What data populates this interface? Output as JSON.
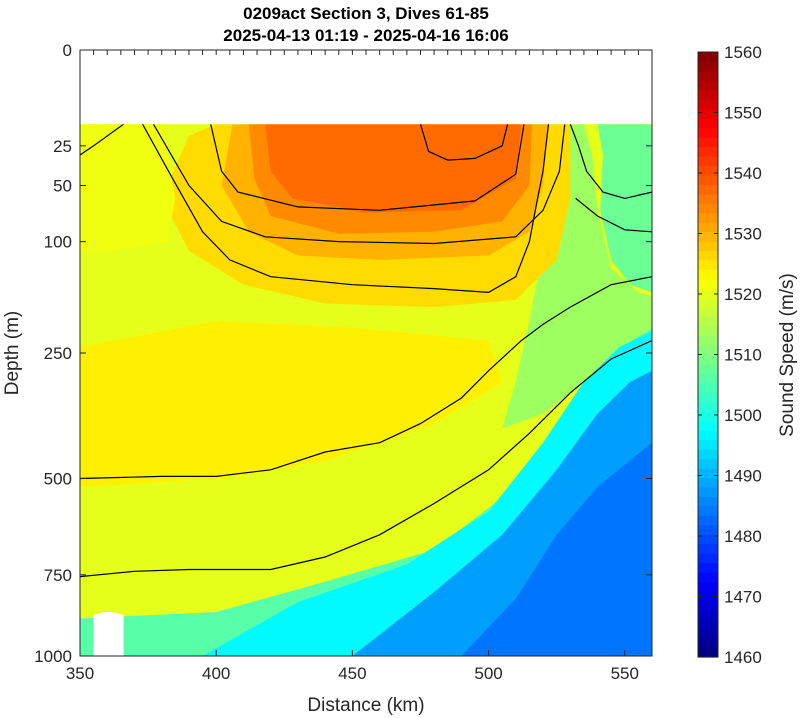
{
  "chart_data": {
    "type": "heatmap",
    "title": "0209act Section 3, Dives 61-85",
    "subtitle": "2025-04-13 01:19 - 2025-04-16 16:06",
    "xlabel": "Distance (km)",
    "ylabel": "Depth (m)",
    "xlim": [
      350,
      560
    ],
    "x_ticks": [
      350,
      400,
      450,
      500,
      550
    ],
    "y_scale": "sqrt",
    "ylim": [
      0,
      1000
    ],
    "y_ticks": [
      0,
      25,
      50,
      100,
      250,
      500,
      750,
      1000
    ],
    "colorbar": {
      "label": "Sound Speed (m/s)",
      "range": [
        1460,
        1560
      ],
      "ticks": [
        1460,
        1470,
        1480,
        1490,
        1500,
        1510,
        1520,
        1530,
        1540,
        1550,
        1560
      ],
      "colormap": "jet"
    },
    "contour_levels": [
      1515,
      1520,
      1525,
      1530,
      1535
    ],
    "no_data_region": "depths shallower than about 15 m, plus a small gap near 355-365 km at about 850-1000 m",
    "colors": {
      "warm_core": "#f39a1f",
      "surface_band": "#fde010",
      "intermediate": "#eef236",
      "deep_blue": "#1e6bf0",
      "contour_line": "#000000"
    }
  }
}
